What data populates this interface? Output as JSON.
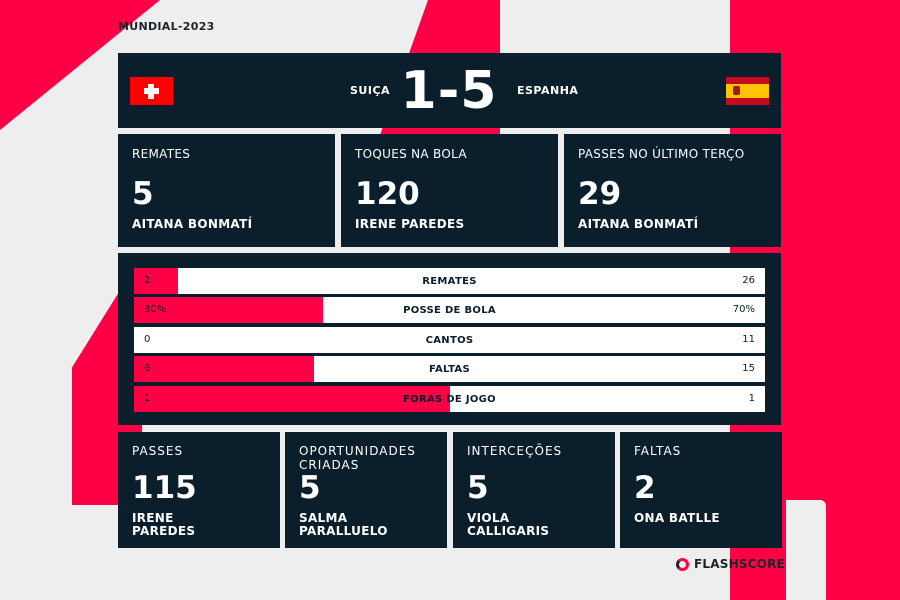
{
  "competition": "MUNDIAL-2023",
  "header": {
    "home_team": "SUIÇA",
    "away_team": "ESPANHA",
    "score": "1-5",
    "home_flag_icon": "swiss-flag-icon",
    "away_flag_icon": "spain-flag-icon"
  },
  "leaders_top": [
    {
      "label": "REMATES",
      "value": "5",
      "player": "AITANA BONMATÍ"
    },
    {
      "label": "TOQUES NA BOLA",
      "value": "120",
      "player": "IRENE PAREDES"
    },
    {
      "label": "PASSES NO ÚLTIMO TERÇO",
      "value": "29",
      "player": "AITANA BONMATÍ"
    }
  ],
  "stats": [
    {
      "name": "REMATES",
      "home": "2",
      "away": "26",
      "home_share": 0.07
    },
    {
      "name": "POSSE DE BOLA",
      "home": "30%",
      "away": "70%",
      "home_share": 0.3
    },
    {
      "name": "CANTOS",
      "home": "0",
      "away": "11",
      "home_share": 0.0
    },
    {
      "name": "FALTAS",
      "home": "6",
      "away": "15",
      "home_share": 0.286
    },
    {
      "name": "FORAS DE JOGO",
      "home": "1",
      "away": "1",
      "home_share": 0.5
    }
  ],
  "leaders_bottom": [
    {
      "label": "PASSES",
      "value": "115",
      "player": "IRENE PAREDES"
    },
    {
      "label": "OPORTUNIDADES CRIADAS",
      "value": "5",
      "player": "SALMA PARALLUELO"
    },
    {
      "label": "INTERCEÇÕES",
      "value": "5",
      "player": "VIOLA CALLIGARIS"
    },
    {
      "label": "FALTAS",
      "value": "2",
      "player": "ONA BATLLE"
    }
  ],
  "brand": "FLASHSCORE",
  "colors": {
    "accent": "#ff0046",
    "panel": "#0b1e2c",
    "background": "#eeeeef"
  }
}
